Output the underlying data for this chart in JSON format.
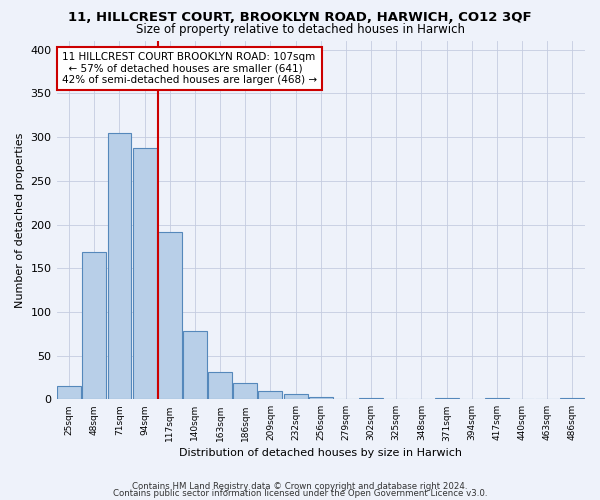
{
  "title": "11, HILLCREST COURT, BROOKLYN ROAD, HARWICH, CO12 3QF",
  "subtitle": "Size of property relative to detached houses in Harwich",
  "xlabel": "Distribution of detached houses by size in Harwich",
  "ylabel": "Number of detached properties",
  "bar_values": [
    15,
    168,
    305,
    288,
    191,
    78,
    31,
    19,
    10,
    6,
    3,
    0,
    2,
    0,
    0,
    2,
    0,
    2,
    0,
    0,
    2
  ],
  "bin_labels": [
    "25sqm",
    "48sqm",
    "71sqm",
    "94sqm",
    "117sqm",
    "140sqm",
    "163sqm",
    "186sqm",
    "209sqm",
    "232sqm",
    "256sqm",
    "279sqm",
    "302sqm",
    "325sqm",
    "348sqm",
    "371sqm",
    "394sqm",
    "417sqm",
    "440sqm",
    "463sqm",
    "486sqm"
  ],
  "bar_color": "#b8cfe8",
  "bar_edge_color": "#5588bb",
  "property_line_x": 4,
  "property_line_color": "#cc0000",
  "ylim": [
    0,
    410
  ],
  "annotation_line1": "11 HILLCREST COURT BROOKLYN ROAD: 107sqm",
  "annotation_line2": "← 57% of detached houses are smaller (641)",
  "annotation_line3": "42% of semi-detached houses are larger (468) →",
  "annotation_box_color": "#ffffff",
  "annotation_box_edge": "#cc0000",
  "footer1": "Contains HM Land Registry data © Crown copyright and database right 2024.",
  "footer2": "Contains public sector information licensed under the Open Government Licence v3.0.",
  "background_color": "#eef2fa",
  "grid_color": "#c5cce0",
  "yticks": [
    0,
    50,
    100,
    150,
    200,
    250,
    300,
    350,
    400
  ]
}
